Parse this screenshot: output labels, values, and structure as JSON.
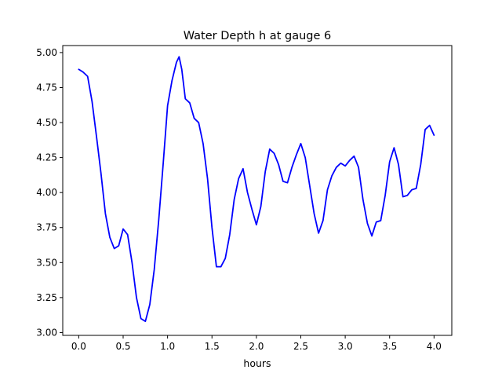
{
  "chart_data": {
    "type": "line",
    "title": "Water Depth h at gauge 6",
    "xlabel": "hours",
    "ylabel": "",
    "xlim": [
      -0.18,
      4.2
    ],
    "ylim": [
      2.98,
      5.05
    ],
    "x_ticks": [
      0.0,
      0.5,
      1.0,
      1.5,
      2.0,
      2.5,
      3.0,
      3.5,
      4.0
    ],
    "x_tick_labels": [
      "0.0",
      "0.5",
      "1.0",
      "1.5",
      "2.0",
      "2.5",
      "3.0",
      "3.5",
      "4.0"
    ],
    "y_ticks": [
      3.0,
      3.25,
      3.5,
      3.75,
      4.0,
      4.25,
      4.5,
      4.75,
      5.0
    ],
    "y_tick_labels": [
      "3.00",
      "3.25",
      "3.50",
      "3.75",
      "4.00",
      "4.25",
      "4.50",
      "4.75",
      "5.00"
    ],
    "grid": false,
    "legend": "none",
    "series": [
      {
        "color": "#0000ff",
        "x": [
          0.0,
          0.05,
          0.1,
          0.15,
          0.2,
          0.25,
          0.3,
          0.35,
          0.4,
          0.45,
          0.5,
          0.55,
          0.6,
          0.65,
          0.7,
          0.75,
          0.8,
          0.85,
          0.9,
          0.95,
          1.0,
          1.05,
          1.1,
          1.13,
          1.16,
          1.2,
          1.25,
          1.3,
          1.35,
          1.4,
          1.45,
          1.5,
          1.55,
          1.6,
          1.65,
          1.7,
          1.75,
          1.8,
          1.85,
          1.9,
          1.95,
          2.0,
          2.05,
          2.1,
          2.15,
          2.2,
          2.25,
          2.3,
          2.35,
          2.4,
          2.45,
          2.5,
          2.55,
          2.6,
          2.65,
          2.7,
          2.75,
          2.8,
          2.85,
          2.9,
          2.95,
          3.0,
          3.05,
          3.1,
          3.15,
          3.2,
          3.25,
          3.3,
          3.35,
          3.4,
          3.45,
          3.5,
          3.55,
          3.6,
          3.65,
          3.7,
          3.75,
          3.8,
          3.85,
          3.9,
          3.95,
          4.0
        ],
        "y": [
          4.88,
          4.86,
          4.83,
          4.65,
          4.4,
          4.14,
          3.85,
          3.68,
          3.6,
          3.62,
          3.74,
          3.7,
          3.5,
          3.25,
          3.1,
          3.08,
          3.2,
          3.45,
          3.8,
          4.2,
          4.62,
          4.8,
          4.93,
          4.97,
          4.88,
          4.67,
          4.64,
          4.53,
          4.5,
          4.35,
          4.1,
          3.75,
          3.47,
          3.47,
          3.53,
          3.7,
          3.95,
          4.1,
          4.17,
          4.0,
          3.88,
          3.77,
          3.9,
          4.15,
          4.31,
          4.28,
          4.2,
          4.08,
          4.07,
          4.18,
          4.27,
          4.35,
          4.25,
          4.05,
          3.85,
          3.71,
          3.8,
          4.02,
          4.12,
          4.18,
          4.21,
          4.19,
          4.23,
          4.26,
          4.18,
          3.95,
          3.78,
          3.69,
          3.79,
          3.8,
          3.98,
          4.22,
          4.32,
          4.2,
          3.97,
          3.98,
          4.02,
          4.03,
          4.2,
          4.45,
          4.48,
          4.41
        ]
      }
    ]
  }
}
